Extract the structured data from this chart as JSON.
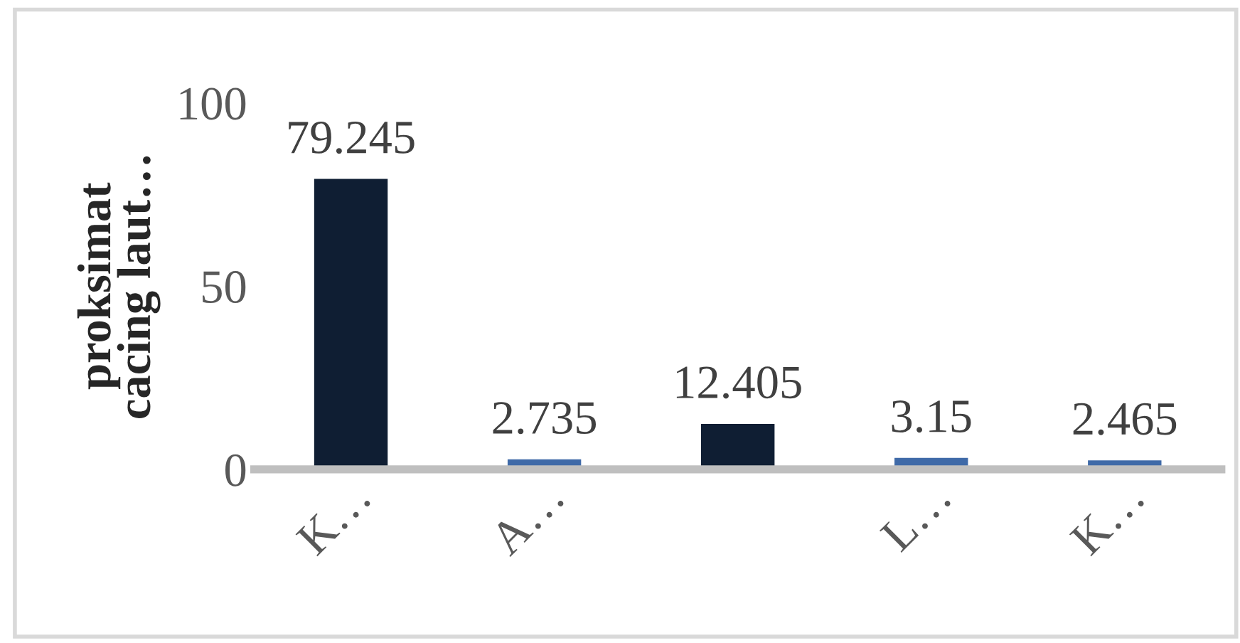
{
  "chart_data": {
    "type": "bar",
    "ylabel": "proksimat\ncacing laut…",
    "categories": [
      "K…",
      "A…",
      null,
      "L…",
      "K…"
    ],
    "values": [
      79.245,
      2.735,
      12.405,
      3.15,
      2.465
    ],
    "colors": [
      "#0f1e33",
      "#3f6aa8",
      "#0f1e33",
      "#3f6aa8",
      "#3f6aa8"
    ],
    "ylim": [
      0,
      100
    ],
    "yticks": [
      0,
      50,
      100
    ],
    "data_labels": true,
    "grid": false
  }
}
